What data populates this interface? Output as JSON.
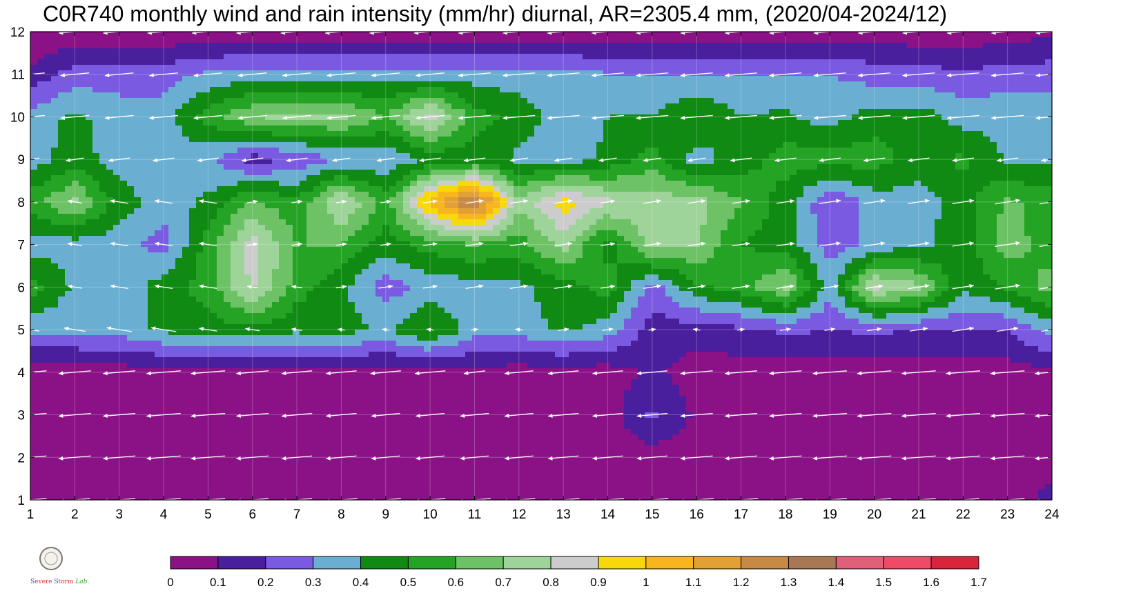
{
  "title": "C0R740 monthly wind and rain intensity (mm/hr) diurnal, AR=2305.4 mm, (2020/04-2024/12)",
  "chart_data": {
    "type": "heatmap",
    "title": "C0R740 monthly wind and rain intensity (mm/hr) diurnal, AR=2305.4 mm, (2020/04-2024/12)",
    "x_ticks": [
      "1",
      "2",
      "3",
      "4",
      "5",
      "6",
      "7",
      "8",
      "9",
      "10",
      "11",
      "12",
      "13",
      "14",
      "15",
      "16",
      "17",
      "18",
      "19",
      "20",
      "21",
      "22",
      "23",
      "24"
    ],
    "y_ticks": [
      "1",
      "2",
      "3",
      "4",
      "5",
      "6",
      "7",
      "8",
      "9",
      "10",
      "11",
      "12"
    ],
    "xlim": [
      1,
      24
    ],
    "ylim": [
      1,
      12
    ],
    "colorbar": {
      "labels": [
        "0",
        "0.1",
        "0.2",
        "0.3",
        "0.4",
        "0.5",
        "0.6",
        "0.7",
        "0.8",
        "0.9",
        "1",
        "1.1",
        "1.2",
        "1.3",
        "1.4",
        "1.5",
        "1.6",
        "1.7"
      ],
      "colors": [
        "#8b1187",
        "#4a1f9d",
        "#7a5ae0",
        "#6aaed1",
        "#108a12",
        "#25a325",
        "#6cc264",
        "#9ed39a",
        "#cccccc",
        "#f7d90b",
        "#f7b51e",
        "#e3a035",
        "#c78a45",
        "#a87855",
        "#e0607a",
        "#ef4a68",
        "#d9243c"
      ]
    },
    "values": [
      [
        0.02,
        0.02,
        0.02,
        0.02,
        0.02,
        0.02,
        0.02,
        0.02,
        0.02,
        0.02,
        0.02,
        0.02,
        0.02,
        0.02,
        0.02,
        0.02,
        0.02,
        0.02,
        0.02,
        0.02,
        0.02,
        0.02,
        0.02,
        0.15
      ],
      [
        0.02,
        0.02,
        0.02,
        0.02,
        0.02,
        0.02,
        0.02,
        0.02,
        0.02,
        0.02,
        0.02,
        0.02,
        0.02,
        0.02,
        0.05,
        0.05,
        0.02,
        0.02,
        0.02,
        0.02,
        0.02,
        0.02,
        0.02,
        0.02
      ],
      [
        0.02,
        0.02,
        0.02,
        0.02,
        0.02,
        0.02,
        0.02,
        0.02,
        0.02,
        0.02,
        0.02,
        0.02,
        0.02,
        0.05,
        0.22,
        0.08,
        0.02,
        0.02,
        0.02,
        0.02,
        0.02,
        0.02,
        0.02,
        0.02
      ],
      [
        0.05,
        0.05,
        0.05,
        0.05,
        0.05,
        0.05,
        0.05,
        0.05,
        0.05,
        0.05,
        0.06,
        0.05,
        0.05,
        0.05,
        0.12,
        0.05,
        0.05,
        0.05,
        0.05,
        0.05,
        0.05,
        0.05,
        0.05,
        0.08
      ],
      [
        0.32,
        0.32,
        0.35,
        0.42,
        0.45,
        0.48,
        0.42,
        0.45,
        0.38,
        0.52,
        0.35,
        0.35,
        0.42,
        0.35,
        0.15,
        0.15,
        0.18,
        0.22,
        0.2,
        0.22,
        0.2,
        0.2,
        0.2,
        0.35
      ],
      [
        0.55,
        0.38,
        0.33,
        0.45,
        0.55,
        0.82,
        0.55,
        0.42,
        0.25,
        0.33,
        0.35,
        0.38,
        0.45,
        0.55,
        0.25,
        0.48,
        0.55,
        0.72,
        0.35,
        0.82,
        0.72,
        0.42,
        0.52,
        0.65
      ],
      [
        0.35,
        0.35,
        0.35,
        0.25,
        0.55,
        0.85,
        0.6,
        0.6,
        0.45,
        0.55,
        0.6,
        0.55,
        0.75,
        0.45,
        0.75,
        0.7,
        0.5,
        0.45,
        0.25,
        0.32,
        0.38,
        0.45,
        0.65,
        0.55
      ],
      [
        0.55,
        0.72,
        0.45,
        0.35,
        0.42,
        0.62,
        0.52,
        0.82,
        0.55,
        1.05,
        1.35,
        0.72,
        0.95,
        0.82,
        0.75,
        0.75,
        0.6,
        0.45,
        0.2,
        0.35,
        0.35,
        0.45,
        0.62,
        0.55
      ],
      [
        0.35,
        0.45,
        0.35,
        0.35,
        0.32,
        0.15,
        0.22,
        0.3,
        0.3,
        0.42,
        0.45,
        0.38,
        0.35,
        0.42,
        0.55,
        0.35,
        0.45,
        0.55,
        0.55,
        0.55,
        0.45,
        0.52,
        0.38,
        0.38
      ],
      [
        0.35,
        0.42,
        0.35,
        0.35,
        0.55,
        0.7,
        0.72,
        0.72,
        0.6,
        0.85,
        0.55,
        0.45,
        0.35,
        0.4,
        0.4,
        0.5,
        0.4,
        0.42,
        0.35,
        0.45,
        0.45,
        0.35,
        0.38,
        0.38
      ],
      [
        0.12,
        0.25,
        0.25,
        0.25,
        0.32,
        0.35,
        0.35,
        0.35,
        0.35,
        0.35,
        0.35,
        0.35,
        0.35,
        0.3,
        0.3,
        0.3,
        0.3,
        0.3,
        0.3,
        0.25,
        0.25,
        0.22,
        0.25,
        0.25
      ],
      [
        0.02,
        0.02,
        0.02,
        0.02,
        0.02,
        0.02,
        0.02,
        0.02,
        0.02,
        0.02,
        0.02,
        0.02,
        0.02,
        0.02,
        0.05,
        0.05,
        0.05,
        0.02,
        0.05,
        0.05,
        0.02,
        0.02,
        0.05,
        0.08
      ]
    ],
    "winds": [
      [
        -0.9,
        -0.85,
        -0.9,
        -0.95,
        -0.95,
        -0.9,
        -0.85,
        -0.9,
        -0.85,
        -0.85,
        -0.9,
        -0.9,
        -0.9,
        -0.9,
        -0.9,
        -0.95,
        -0.95,
        -0.95,
        -0.95,
        -0.95,
        -0.95,
        -0.9,
        -0.95,
        -0.95
      ],
      [
        -0.9,
        -0.9,
        -0.9,
        -0.95,
        -0.95,
        -0.9,
        -0.85,
        -0.85,
        -0.8,
        -0.8,
        -0.8,
        -0.8,
        -0.85,
        -0.85,
        -0.85,
        -0.9,
        -0.9,
        -0.9,
        -0.95,
        -0.95,
        -0.95,
        -0.95,
        -0.95,
        -0.95
      ],
      [
        -0.9,
        -0.9,
        -0.9,
        -0.95,
        -0.95,
        -0.9,
        -0.85,
        -0.85,
        -0.8,
        -0.8,
        -0.8,
        -0.8,
        -0.85,
        -0.85,
        -0.85,
        -0.9,
        -0.9,
        -0.9,
        -0.95,
        -0.95,
        -0.95,
        -0.95,
        -0.95,
        -0.95
      ],
      [
        -0.9,
        -0.9,
        -0.9,
        -0.95,
        -0.95,
        -0.9,
        -0.85,
        -0.85,
        -0.85,
        -0.85,
        -0.6,
        -0.8,
        -0.85,
        -0.85,
        -0.85,
        -0.9,
        -0.9,
        -0.9,
        -0.95,
        -0.95,
        -0.95,
        -0.95,
        -0.95,
        -0.95
      ],
      [
        -0.5,
        -0.6,
        -0.7,
        -0.7,
        -0.5,
        -0.4,
        -0.3,
        -0.2,
        -0.2,
        -0.2,
        0.2,
        -0.2,
        0.3,
        0.3,
        0.2,
        -0.2,
        0.2,
        0.3,
        0.3,
        0.4,
        0.5,
        0.6,
        0.6,
        0.6
      ],
      [
        -0.4,
        -0.4,
        -0.5,
        -0.5,
        -0.5,
        -0.3,
        -0.3,
        0.3,
        0.4,
        0.4,
        0.5,
        0.5,
        0.5,
        0.4,
        0.5,
        0.5,
        0.5,
        0.5,
        0.5,
        0.5,
        0.6,
        0.6,
        0.7,
        0.7
      ],
      [
        -0.4,
        -0.4,
        -0.5,
        -0.5,
        -0.5,
        0.3,
        0.3,
        0.3,
        0.3,
        0.4,
        0.5,
        0.5,
        0.5,
        0.4,
        0.5,
        0.5,
        0.5,
        0.5,
        0.6,
        0.6,
        0.6,
        0.6,
        0.7,
        0.7
      ],
      [
        -0.4,
        -0.4,
        -0.5,
        -0.5,
        -0.5,
        0.3,
        0.3,
        0.3,
        0.3,
        0.4,
        0.5,
        0.5,
        0.5,
        0.4,
        0.5,
        0.5,
        0.5,
        0.5,
        0.6,
        0.6,
        0.6,
        0.6,
        0.7,
        0.7
      ],
      [
        -0.5,
        -0.5,
        -0.6,
        -0.6,
        -0.6,
        -0.6,
        -0.6,
        -0.5,
        -0.5,
        -0.6,
        -0.6,
        -0.5,
        -0.5,
        -0.5,
        -0.5,
        -0.5,
        -0.6,
        -0.6,
        -0.6,
        -0.6,
        -0.6,
        -0.6,
        -0.6,
        -0.6
      ],
      [
        -0.8,
        -0.8,
        -0.8,
        -0.8,
        -0.8,
        -0.8,
        -0.8,
        -0.8,
        -0.8,
        -0.8,
        -0.9,
        -0.9,
        -0.9,
        -0.9,
        -0.9,
        -0.9,
        -0.9,
        -0.9,
        -0.9,
        -0.9,
        -0.9,
        -0.9,
        -0.9,
        -0.9
      ],
      [
        -0.8,
        -0.8,
        -0.8,
        -0.8,
        -0.8,
        -0.8,
        -0.8,
        -0.8,
        -0.8,
        -0.8,
        -0.9,
        -0.9,
        -0.9,
        -0.9,
        -0.9,
        -0.9,
        -0.9,
        -0.9,
        -0.9,
        -0.9,
        -0.9,
        -0.9,
        -0.9,
        -0.9
      ],
      [
        -0.9,
        -0.9,
        -0.9,
        -0.9,
        -0.9,
        -0.9,
        -0.9,
        -0.9,
        -0.9,
        -0.9,
        -0.9,
        -0.9,
        -0.9,
        -0.9,
        -0.9,
        -0.9,
        -0.9,
        -0.9,
        -0.9,
        -0.9,
        -0.9,
        -0.9,
        -0.9,
        -0.9
      ]
    ]
  },
  "logo": {
    "lab_name": "Severe Storm Lab."
  }
}
